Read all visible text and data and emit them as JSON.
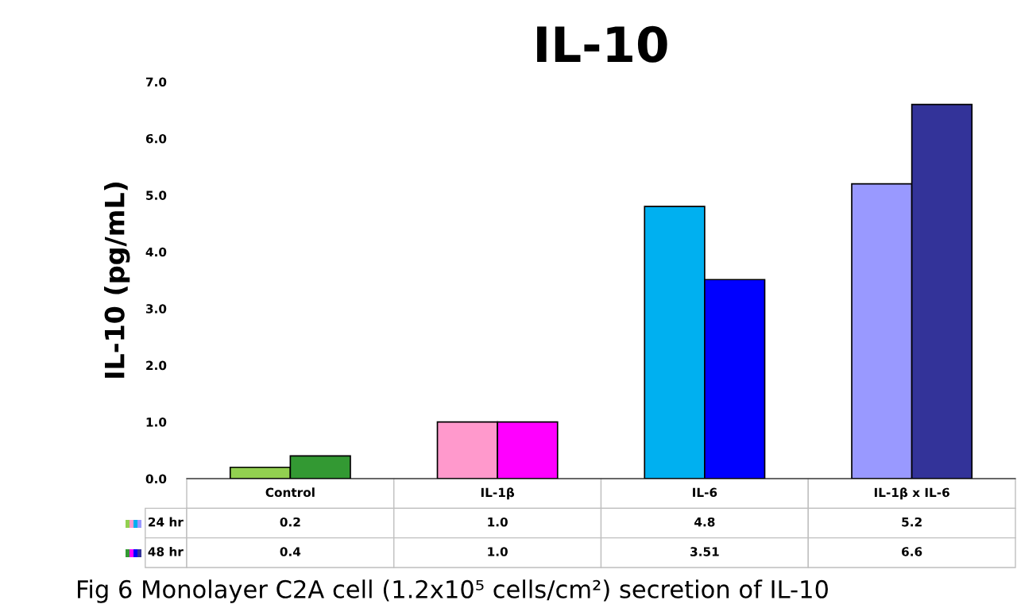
{
  "chart_data": {
    "type": "bar",
    "title": "IL-10",
    "ylabel": "IL-10 (pg/mL)",
    "categories": [
      "Control",
      "IL-1β",
      "IL-6",
      "IL-1β x IL-6"
    ],
    "series": [
      {
        "name": "24 hr",
        "colors": [
          "#92d050",
          "#ff99cc",
          "#00b0f0",
          "#9999ff"
        ],
        "values": [
          0.2,
          1.0,
          4.8,
          5.2
        ],
        "value_labels": [
          "0.2",
          "1.0",
          "4.8",
          "5.2"
        ]
      },
      {
        "name": "48 hr",
        "colors": [
          "#339933",
          "#ff00ff",
          "#0000ff",
          "#333399"
        ],
        "values": [
          0.4,
          1.0,
          3.51,
          6.6
        ],
        "value_labels": [
          "0.4",
          "1.0",
          "3.51",
          "6.6"
        ]
      }
    ],
    "ylim": [
      0,
      7.0
    ],
    "yticks": [
      {
        "value": 0,
        "label": "0.0"
      },
      {
        "value": 1,
        "label": "1.0"
      },
      {
        "value": 2,
        "label": "2.0"
      },
      {
        "value": 3,
        "label": "3.0"
      },
      {
        "value": 4,
        "label": "4.0"
      },
      {
        "value": 5,
        "label": "5.0"
      },
      {
        "value": 6,
        "label": "6.0"
      },
      {
        "value": 7,
        "label": "7.0"
      }
    ],
    "grid": false,
    "legend": "bottom",
    "annotations": [
      "Fig 6 Monolayer C2A cell (1.2x10⁵ cells/cm²) secretion of IL-10"
    ]
  }
}
